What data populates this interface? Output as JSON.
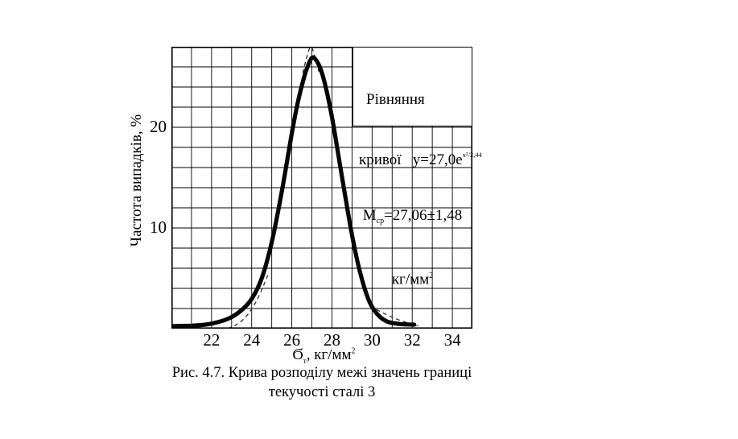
{
  "figure": {
    "caption_line1": "Рис. 4.7. Крива розподілу межі значень границі",
    "caption_line2": "текучості сталі 3"
  },
  "equation_box": {
    "line1": "Рівняння",
    "line2_prefix": "кривої   y=27,0e",
    "line2_sup": "х²/2,44",
    "line3_m": "М",
    "line3_sub": "ср",
    "line3_rest": "=27,06±1,48",
    "line4_base": "кг/мм",
    "line4_sup": "2"
  },
  "chart_data": {
    "type": "line",
    "title": "",
    "ylabel": "Частота випадків, %",
    "xlabel_symbol": "Ϭ",
    "xlabel_symbol_sub": "т",
    "xlabel_rest": ", кг/мм",
    "xlabel_sup": "2",
    "xlim": [
      20,
      35
    ],
    "ylim": [
      0,
      28
    ],
    "x_ticks": [
      22,
      24,
      26,
      28,
      30,
      32,
      34
    ],
    "y_ticks": [
      10,
      20
    ],
    "grid": {
      "on": true,
      "x_step": 1,
      "y_step": 2
    },
    "legend_position": "none",
    "distribution": {
      "mean": 27.06,
      "spread": 1.48,
      "peak_x": 27.0,
      "peak_y": 27.0
    },
    "series": [
      {
        "name": "experimental-distribution-curve",
        "style": "solid",
        "points": [
          [
            20,
            0.25
          ],
          [
            20.5,
            0.27
          ],
          [
            21,
            0.3
          ],
          [
            21.5,
            0.36
          ],
          [
            22,
            0.5
          ],
          [
            22.5,
            0.75
          ],
          [
            23,
            1.15
          ],
          [
            23.5,
            1.85
          ],
          [
            24,
            2.95
          ],
          [
            24.5,
            5.0
          ],
          [
            25,
            8.6
          ],
          [
            25.5,
            13.6
          ],
          [
            26,
            19.4
          ],
          [
            26.3,
            22.5
          ],
          [
            26.6,
            24.9
          ],
          [
            26.8,
            26.1
          ],
          [
            27,
            26.9
          ],
          [
            27.2,
            26.7
          ],
          [
            27.45,
            25.7
          ],
          [
            27.7,
            23.9
          ],
          [
            28,
            21.0
          ],
          [
            28.3,
            17.5
          ],
          [
            28.6,
            13.9
          ],
          [
            29,
            9.3
          ],
          [
            29.4,
            5.6
          ],
          [
            29.8,
            3.0
          ],
          [
            30.1,
            1.85
          ],
          [
            30.4,
            1.15
          ],
          [
            30.7,
            0.75
          ],
          [
            31,
            0.57
          ],
          [
            31.4,
            0.46
          ],
          [
            31.8,
            0.42
          ],
          [
            32.1,
            0.4
          ]
        ]
      },
      {
        "name": "theoretical-curve-dashed-left",
        "style": "dashed",
        "points": [
          [
            22.8,
            0.02
          ],
          [
            23.2,
            0.35
          ],
          [
            23.6,
            0.95
          ],
          [
            24.0,
            1.95
          ],
          [
            24.4,
            3.4
          ],
          [
            24.8,
            5.3
          ]
        ]
      },
      {
        "name": "theoretical-curve-dashed-peak",
        "style": "dashed",
        "points": [
          [
            26.55,
            25.4
          ],
          [
            26.75,
            27.0
          ],
          [
            26.95,
            28.0
          ],
          [
            27.15,
            27.0
          ],
          [
            27.35,
            25.5
          ]
        ]
      },
      {
        "name": "theoretical-curve-dashed-right",
        "style": "dashed",
        "points": [
          [
            29.9,
            2.25
          ],
          [
            30.5,
            1.6
          ],
          [
            31.1,
            1.05
          ],
          [
            31.7,
            0.62
          ],
          [
            32.3,
            0.28
          ]
        ]
      }
    ]
  },
  "colors": {
    "background": "#ffffff",
    "ink": "#000000",
    "grid": "#000000",
    "curve": "#060606",
    "dashed": "#2e2e2e"
  }
}
